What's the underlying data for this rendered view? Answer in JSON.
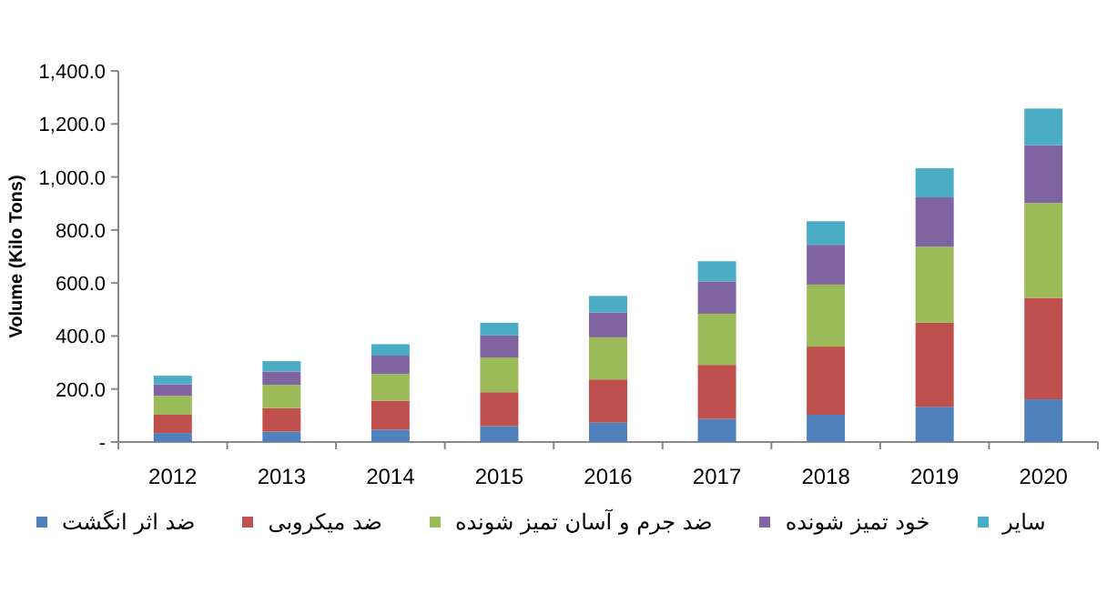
{
  "chart_data": {
    "type": "bar",
    "stacked": true,
    "ylabel": "Volume (Kilo Tons)",
    "categories": [
      "2012",
      "2013",
      "2014",
      "2015",
      "2016",
      "2017",
      "2018",
      "2019",
      "2020"
    ],
    "ylim": [
      0,
      1400
    ],
    "yticks": [
      {
        "value": 0,
        "label": "-"
      },
      {
        "value": 200,
        "label": "200.0"
      },
      {
        "value": 400,
        "label": "400.0"
      },
      {
        "value": 600,
        "label": "600.0"
      },
      {
        "value": 800,
        "label": "800.0"
      },
      {
        "value": 1000,
        "label": "1,000.0"
      },
      {
        "value": 1200,
        "label": "1,200.0"
      },
      {
        "value": 1400,
        "label": "1,400.0"
      }
    ],
    "legend": "bottom",
    "grid": false,
    "series": [
      {
        "name": "ضد اثر انگشت",
        "color": "#4f81bd",
        "values": [
          34,
          39,
          46,
          60,
          73,
          87,
          103,
          133,
          161
        ]
      },
      {
        "name": "ضد میکروبی",
        "color": "#c0504d",
        "values": [
          69,
          89,
          110,
          128,
          163,
          204,
          257,
          317,
          383
        ]
      },
      {
        "name": "ضد جرم و آسان تمیز شونده",
        "color": "#9bbb59",
        "values": [
          71,
          88,
          101,
          131,
          159,
          193,
          234,
          287,
          358
        ]
      },
      {
        "name": "خود تمیز شونده",
        "color": "#8064a2",
        "values": [
          44,
          50,
          69,
          83,
          94,
          122,
          150,
          186,
          218
        ]
      },
      {
        "name": "سایر",
        "color": "#4bacc6",
        "values": [
          32,
          39,
          43,
          48,
          62,
          76,
          89,
          110,
          138
        ]
      }
    ]
  }
}
